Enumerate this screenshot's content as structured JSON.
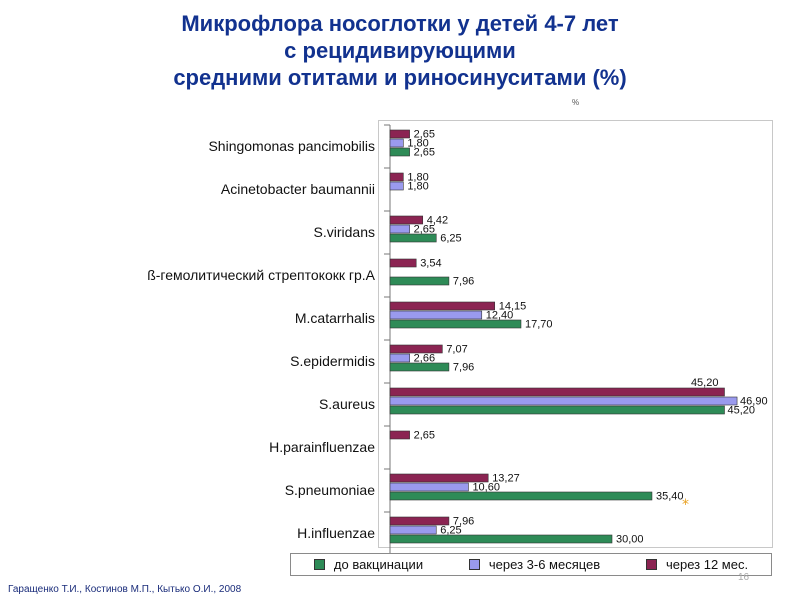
{
  "title_lines": [
    "Микрофлора носоглотки у детей 4-7 лет",
    "с рецидивирующими",
    "средними отитами и риносинуситами (%)"
  ],
  "percent_note": "%",
  "footer": "Гаращенко Т.И., Костинов М.П., Кытько О.И., 2008",
  "page_number": "16",
  "significance_mark": "*",
  "colors": {
    "title": "#12328f",
    "before": "#2e8b57",
    "m3_6": "#9a9aee",
    "m12": "#8b2452"
  },
  "chart_data": {
    "type": "bar",
    "orientation": "horizontal",
    "xlim": [
      0,
      50
    ],
    "categories": [
      "Shingomonas pancimobilis",
      "Acinetobacter baumannii",
      "S.viridans",
      "ß-гемолитический стрептококк гр.А",
      "M.catarrhalis",
      "S.epidermidis",
      "S.aureus",
      "H.parainfluenzae",
      "S.pneumoniae",
      "H.influenzae"
    ],
    "series": [
      {
        "name": "через 12 мес.",
        "color": "#8b2452",
        "values": [
          2.65,
          1.8,
          4.42,
          3.54,
          14.15,
          7.07,
          45.2,
          2.65,
          13.27,
          7.96
        ],
        "labels": [
          "2,65",
          "1,80",
          "4,42",
          "3,54",
          "14,15",
          "7,07",
          "45,20",
          "2,65",
          "13,27",
          "7,96"
        ]
      },
      {
        "name": "через 3-6 месяцев",
        "color": "#9a9aee",
        "values": [
          1.8,
          1.8,
          2.65,
          null,
          12.4,
          2.66,
          46.9,
          null,
          10.6,
          6.25
        ],
        "labels": [
          "1,80",
          "1,80",
          "2,65",
          "",
          "12,40",
          "2,66",
          "46,90",
          "",
          "10,60",
          "6,25"
        ]
      },
      {
        "name": "до вакцинации",
        "color": "#2e8b57",
        "values": [
          2.65,
          null,
          6.25,
          7.96,
          17.7,
          7.96,
          45.2,
          null,
          35.4,
          30.0
        ],
        "labels": [
          "2,65",
          "",
          "6,25",
          "7,96",
          "17,70",
          "7,96",
          "45,20",
          "",
          "35,40",
          "30,00"
        ]
      }
    ],
    "significant": [
      {
        "category": "S.pneumoniae",
        "series": "до вакцинации"
      }
    ],
    "legend": [
      {
        "label": "до вакцинации",
        "color": "#2e8b57"
      },
      {
        "label": "через 3-6 месяцев",
        "color": "#9a9aee"
      },
      {
        "label": "через 12 мес.",
        "color": "#8b2452"
      }
    ],
    "legend_position": "bottom"
  }
}
